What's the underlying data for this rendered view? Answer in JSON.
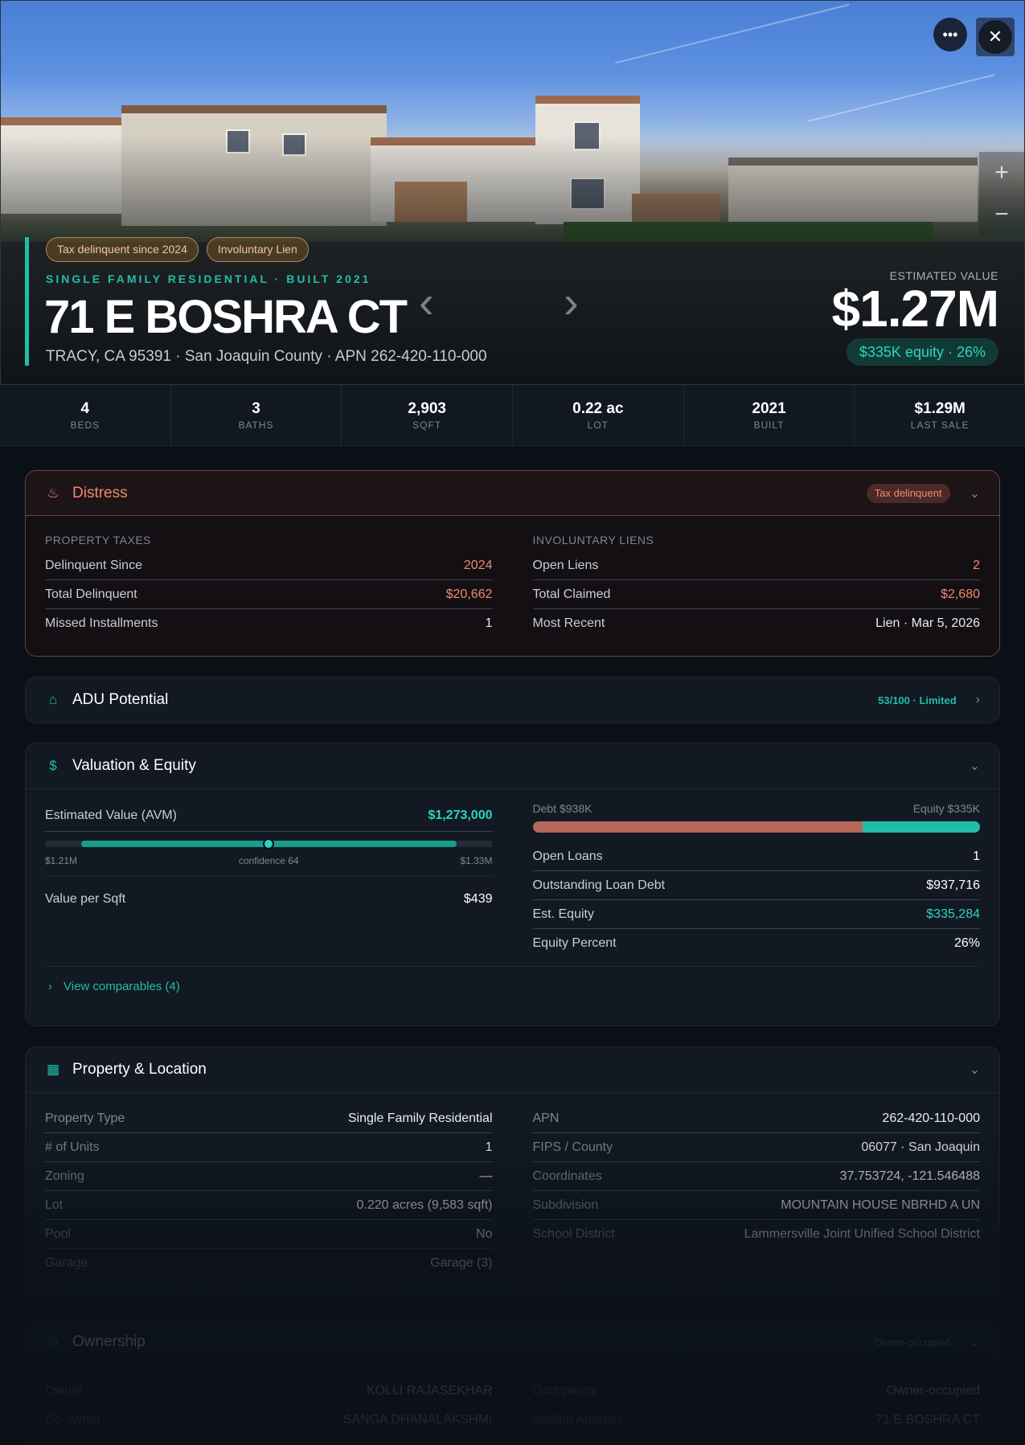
{
  "hero": {
    "badges": [
      "Tax delinquent since 2024",
      "Involuntary Lien"
    ],
    "subtitle": "SINGLE FAMILY RESIDENTIAL · BUILT 2021",
    "address": "71 E BOSHRA CT",
    "location": "TRACY, CA 95391 · San Joaquin County · APN 262-420-110-000",
    "estimated_label": "ESTIMATED VALUE",
    "estimated_value": "$1.27M",
    "equity_pill": "$335K equity · 26%",
    "more_icon": "more-horizontal-icon",
    "close_icon": "close-icon",
    "zoom_in": "+",
    "zoom_out": "−",
    "prev_arrow": "chevron-left",
    "next_arrow": "chevron-right"
  },
  "stats": [
    {
      "value": "4",
      "label": "BEDS"
    },
    {
      "value": "3",
      "label": "BATHS"
    },
    {
      "value": "2,903",
      "label": "SQFT"
    },
    {
      "value": "0.22 ac",
      "label": "LOT"
    },
    {
      "value": "2021",
      "label": "BUILT"
    },
    {
      "value": "$1.29M",
      "label": "LAST SALE"
    }
  ],
  "distress": {
    "title": "Distress",
    "pill": "Tax delinquent",
    "left_label": "PROPERTY TAXES",
    "left_rows": [
      {
        "k": "Delinquent Since",
        "v": "2024"
      },
      {
        "k": "Total Delinquent",
        "v": "$20,662"
      },
      {
        "k": "Missed Installments",
        "v": "1"
      }
    ],
    "right_label": "INVOLUNTARY LIENS",
    "right_rows": [
      {
        "k": "Open Liens",
        "v": "2"
      },
      {
        "k": "Total Claimed",
        "v": "$2,680"
      },
      {
        "k": "Most Recent",
        "v": "Lien · Mar 5, 2026"
      }
    ]
  },
  "adu": {
    "title": "ADU Potential",
    "score": "53/100 · Limited"
  },
  "valuation": {
    "title": "Valuation & Equity",
    "avm_label": "Estimated Value (AVM)",
    "avm_value": "$1,273,000",
    "range_low": "$1.21M",
    "confidence": "confidence 64",
    "range_high": "$1.33M",
    "range_fill_start": 0.08,
    "range_fill_end": 0.92,
    "avm_position": 0.5,
    "value_per_sqft_label": "Value per Sqft",
    "value_per_sqft": "$439",
    "debt_label": "Debt $938K",
    "equity_label": "Equity $335K",
    "debt_fraction": 0.737,
    "right_rows": [
      {
        "k": "Open Loans",
        "v": "1"
      },
      {
        "k": "Outstanding Loan Debt",
        "v": "$937,716"
      },
      {
        "k": "Est. Equity",
        "v": "$335,284"
      },
      {
        "k": "Equity Percent",
        "v": "26%"
      }
    ],
    "comparables": "View comparables (4)"
  },
  "property": {
    "title": "Property & Location",
    "left_rows": [
      {
        "k": "Property Type",
        "v": "Single Family Residential"
      },
      {
        "k": "# of Units",
        "v": "1"
      },
      {
        "k": "Zoning",
        "v": "—"
      },
      {
        "k": "Lot",
        "v": "0.220 acres (9,583 sqft)"
      },
      {
        "k": "Pool",
        "v": "No"
      },
      {
        "k": "Garage",
        "v": "Garage (3)"
      }
    ],
    "right_rows": [
      {
        "k": "APN",
        "v": "262-420-110-000"
      },
      {
        "k": "FIPS / County",
        "v": "06077 · San Joaquin"
      },
      {
        "k": "Coordinates",
        "v": "37.753724, -121.546488"
      },
      {
        "k": "Subdivision",
        "v": "MOUNTAIN HOUSE NBRHD A UN"
      },
      {
        "k": "School District",
        "v": "Lammersville Joint Unified School District"
      }
    ]
  },
  "ownership": {
    "title": "Ownership",
    "pill": "Owner-occupied",
    "left_rows": [
      {
        "k": "Owner",
        "v": "KOLLI RAJASEKHAR"
      },
      {
        "k": "Co-owner",
        "v": "SANGA DHANALAKSHMI"
      }
    ],
    "right_rows": [
      {
        "k": "Occupancy",
        "v": "Owner-occupied"
      },
      {
        "k": "Mailing Address",
        "v": "71 E BOSHRA CT"
      }
    ]
  }
}
